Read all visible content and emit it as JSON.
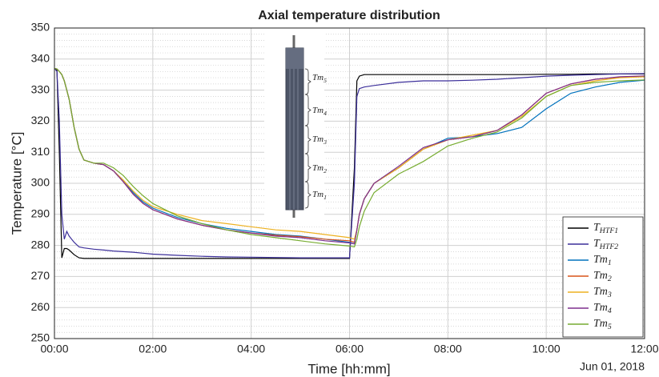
{
  "chart_data": {
    "type": "line",
    "title": "Axial temperature distribution",
    "x_label": "Time [hh:mm]",
    "y_label": "Temperature [°C]",
    "date_label": "Jun 01, 2018",
    "annotations": [
      "Tm_5",
      "Tm_4",
      "Tm_3",
      "Tm_2",
      "Tm_1"
    ],
    "xlim": [
      0,
      12
    ],
    "xticks": [
      {
        "value": 0,
        "label": "00:00"
      },
      {
        "value": 2,
        "label": "02:00"
      },
      {
        "value": 4,
        "label": "04:00"
      },
      {
        "value": 6,
        "label": "06:00"
      },
      {
        "value": 8,
        "label": "08:00"
      },
      {
        "value": 10,
        "label": "10:00"
      },
      {
        "value": 12,
        "label": "12:00"
      }
    ],
    "ylim": [
      250,
      350
    ],
    "yticks": [
      250,
      260,
      270,
      280,
      290,
      300,
      310,
      320,
      330,
      340,
      350
    ],
    "grid": true,
    "minor_grid": true,
    "legend": "lower right",
    "x": [
      0,
      0.05,
      0.1,
      0.15,
      0.2,
      0.25,
      0.3,
      0.4,
      0.5,
      0.6,
      0.8,
      1.0,
      1.2,
      1.4,
      1.6,
      1.8,
      2.0,
      2.5,
      3,
      3.5,
      4,
      4.5,
      5,
      5.5,
      6.0,
      6.1,
      6.15,
      6.2,
      6.3,
      6.5,
      7,
      7.5,
      8,
      8.5,
      9,
      9.5,
      10,
      10.5,
      11,
      11.5,
      12
    ],
    "series": [
      {
        "name": "T_HTF1",
        "color": "#000000",
        "values": [
          337,
          336.5,
          310,
          276,
          279,
          279,
          278.5,
          277,
          276,
          275.8,
          275.8,
          275.8,
          275.8,
          275.8,
          275.8,
          275.8,
          275.8,
          275.8,
          275.8,
          275.8,
          275.8,
          275.8,
          275.8,
          275.8,
          275.8,
          305,
          333,
          334.5,
          335,
          335,
          335,
          335,
          335,
          335,
          335,
          335,
          335.1,
          335.1,
          335.2,
          335.2,
          335.2
        ]
      },
      {
        "name": "T_HTF2",
        "color": "#3c2f9a",
        "values": [
          337,
          336,
          320,
          290,
          282,
          284.5,
          283,
          281,
          279.5,
          279.2,
          278.8,
          278.5,
          278.2,
          278,
          277.8,
          277.5,
          277.2,
          276.8,
          276.5,
          276.3,
          276.2,
          276.1,
          276,
          276,
          276,
          300,
          328,
          330.5,
          331,
          331.5,
          332.5,
          333,
          333,
          333.2,
          333.5,
          334,
          334.5,
          334.8,
          335,
          335.2,
          335.3
        ]
      },
      {
        "name": "Tm_1",
        "color": "#0072bd",
        "values": [
          337,
          336.8,
          336,
          335,
          333,
          330,
          327,
          318,
          311,
          307.5,
          306.5,
          306,
          304,
          301,
          297,
          294,
          292,
          289,
          287,
          285.5,
          284.5,
          283.5,
          283,
          282,
          281,
          280.5,
          285,
          290,
          295,
          300,
          305,
          311,
          314.5,
          315,
          316,
          318,
          324,
          329,
          331,
          332.5,
          333.2
        ]
      },
      {
        "name": "Tm_2",
        "color": "#d95319",
        "values": [
          337,
          336.8,
          336,
          335,
          333,
          330,
          327,
          318,
          311,
          307.5,
          306.5,
          306,
          304,
          300.5,
          296.5,
          293.5,
          291.5,
          288.5,
          286.5,
          285,
          284,
          283.3,
          282.8,
          282,
          281.5,
          281,
          285,
          290,
          295,
          300,
          305,
          311,
          314,
          315,
          317,
          322,
          329,
          332,
          333.5,
          334.2,
          334.5
        ]
      },
      {
        "name": "Tm_3",
        "color": "#edb120",
        "values": [
          337,
          336.8,
          336,
          335,
          333,
          330,
          327,
          318,
          311,
          307.5,
          306.5,
          306,
          304,
          301,
          297.5,
          294.5,
          292.5,
          290,
          288,
          287,
          286,
          285,
          284.5,
          283.5,
          282.5,
          282,
          285,
          290,
          295,
          300,
          305,
          311,
          314,
          315.5,
          317,
          321.5,
          328,
          331.5,
          333,
          334,
          334.3
        ]
      },
      {
        "name": "Tm_4",
        "color": "#7e2f8e",
        "values": [
          337,
          336.8,
          336,
          335,
          333,
          330,
          327,
          318,
          311,
          307.5,
          306.5,
          306,
          304,
          300.5,
          296.5,
          293.5,
          291.5,
          288.5,
          286.5,
          285,
          284,
          283,
          282.5,
          281.5,
          280.8,
          280.5,
          285,
          290,
          295,
          300,
          305.5,
          311.5,
          314,
          315,
          317,
          322,
          329,
          332,
          333.5,
          334.3,
          334.6
        ]
      },
      {
        "name": "Tm_5",
        "color": "#77ac30",
        "values": [
          337,
          336.8,
          336,
          335,
          333,
          330,
          327,
          318,
          311,
          307.5,
          306.5,
          306.5,
          305,
          302.5,
          299,
          296,
          293.5,
          289.5,
          287,
          285,
          283.5,
          282.5,
          281.5,
          280.5,
          279.8,
          279.5,
          282,
          286,
          291,
          297,
          303,
          307,
          312,
          314.5,
          316.5,
          321,
          328,
          331.5,
          332.5,
          333,
          333.3
        ]
      }
    ]
  }
}
